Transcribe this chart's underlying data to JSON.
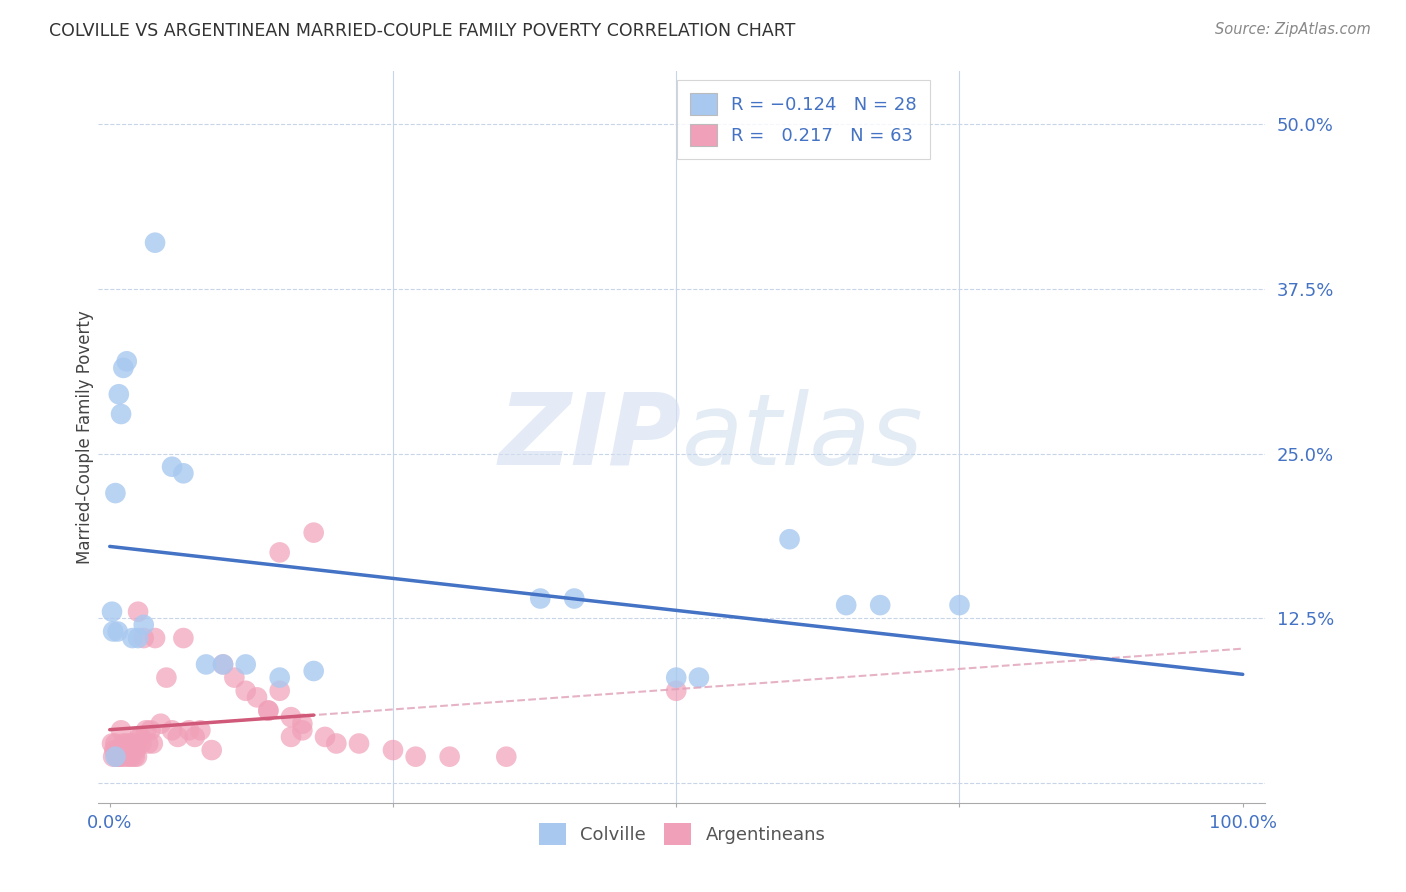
{
  "title": "COLVILLE VS ARGENTINEAN MARRIED-COUPLE FAMILY POVERTY CORRELATION CHART",
  "source": "Source: ZipAtlas.com",
  "ylabel": "Married-Couple Family Poverty",
  "yticks": [
    0.0,
    0.125,
    0.25,
    0.375,
    0.5
  ],
  "xticks": [
    0.0,
    0.25,
    0.5,
    0.75,
    1.0
  ],
  "xlim": [
    -0.01,
    1.02
  ],
  "ylim": [
    -0.015,
    0.54
  ],
  "colville_R": -0.124,
  "colville_N": 28,
  "argentinean_R": 0.217,
  "argentinean_N": 63,
  "colville_color": "#a8c8f0",
  "argentinean_color": "#f0a0b8",
  "colville_line_color": "#4472c4",
  "argentinean_line_color": "#d05878",
  "argentinean_dash_color": "#e0a0b8",
  "colville_x": [
    0.005,
    0.008,
    0.01,
    0.012,
    0.015,
    0.02,
    0.025,
    0.03,
    0.04,
    0.055,
    0.065,
    0.085,
    0.1,
    0.12,
    0.15,
    0.38,
    0.41,
    0.5,
    0.52,
    0.6,
    0.65,
    0.68,
    0.75,
    0.005,
    0.002,
    0.18,
    0.003,
    0.007
  ],
  "colville_y": [
    0.22,
    0.295,
    0.28,
    0.315,
    0.32,
    0.11,
    0.11,
    0.12,
    0.41,
    0.24,
    0.235,
    0.09,
    0.09,
    0.09,
    0.08,
    0.14,
    0.14,
    0.08,
    0.08,
    0.185,
    0.135,
    0.135,
    0.135,
    0.02,
    0.13,
    0.085,
    0.115,
    0.115
  ],
  "argentinean_x": [
    0.002,
    0.003,
    0.004,
    0.005,
    0.006,
    0.007,
    0.008,
    0.009,
    0.01,
    0.011,
    0.012,
    0.013,
    0.014,
    0.015,
    0.016,
    0.017,
    0.018,
    0.019,
    0.02,
    0.021,
    0.022,
    0.023,
    0.024,
    0.025,
    0.026,
    0.027,
    0.028,
    0.03,
    0.032,
    0.034,
    0.036,
    0.038,
    0.04,
    0.045,
    0.05,
    0.055,
    0.06,
    0.065,
    0.07,
    0.075,
    0.08,
    0.09,
    0.1,
    0.11,
    0.12,
    0.13,
    0.14,
    0.15,
    0.16,
    0.17,
    0.18,
    0.19,
    0.2,
    0.22,
    0.25,
    0.27,
    0.3,
    0.35,
    0.14,
    0.15,
    0.16,
    0.17,
    0.5
  ],
  "argentinean_y": [
    0.03,
    0.02,
    0.025,
    0.03,
    0.02,
    0.02,
    0.025,
    0.02,
    0.04,
    0.02,
    0.03,
    0.025,
    0.02,
    0.03,
    0.025,
    0.02,
    0.03,
    0.02,
    0.025,
    0.03,
    0.02,
    0.025,
    0.02,
    0.13,
    0.035,
    0.035,
    0.03,
    0.11,
    0.04,
    0.03,
    0.04,
    0.03,
    0.11,
    0.045,
    0.08,
    0.04,
    0.035,
    0.11,
    0.04,
    0.035,
    0.04,
    0.025,
    0.09,
    0.08,
    0.07,
    0.065,
    0.055,
    0.175,
    0.05,
    0.045,
    0.19,
    0.035,
    0.03,
    0.03,
    0.025,
    0.02,
    0.02,
    0.02,
    0.055,
    0.07,
    0.035,
    0.04,
    0.07
  ],
  "watermark_zip": "ZIP",
  "watermark_atlas": "atlas",
  "background_color": "#ffffff",
  "grid_color": "#c8d4e8",
  "title_color": "#333333",
  "tick_label_color": "#4472c4",
  "ylabel_color": "#444444"
}
